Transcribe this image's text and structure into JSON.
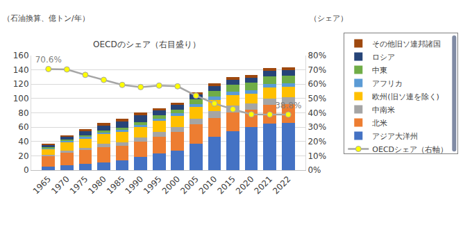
{
  "chart_data": {
    "type": "bar",
    "stacked": true,
    "grid": true,
    "legend": "right",
    "ylabel": "（石油換算、億トン/年）",
    "y2label": "（シェア）",
    "annotation": "OECDのシェア（右目盛り）",
    "categories": [
      "1965",
      "1970",
      "1975",
      "1980",
      "1985",
      "1990",
      "1995",
      "2000",
      "2005",
      "2010",
      "2015",
      "2020",
      "2021",
      "2022"
    ],
    "ylim": [
      0,
      160
    ],
    "yticks": [
      0,
      20,
      40,
      60,
      80,
      100,
      120,
      140,
      160
    ],
    "y2lim": [
      0,
      80
    ],
    "y2ticks": [
      {
        "value": 0,
        "label": "0%"
      },
      {
        "value": 10,
        "label": "10%"
      },
      {
        "value": 20,
        "label": "20%"
      },
      {
        "value": 30,
        "label": "30%"
      },
      {
        "value": 40,
        "label": "40%"
      },
      {
        "value": 50,
        "label": "50%"
      },
      {
        "value": 60,
        "label": "60%"
      },
      {
        "value": 70,
        "label": "70%"
      },
      {
        "value": 80,
        "label": "80%"
      }
    ],
    "series": [
      {
        "name": "アジア大洋州",
        "color": "#4472c4",
        "values": [
          5,
          7,
          9,
          11,
          14,
          18,
          23,
          27,
          37,
          47,
          54,
          60,
          65,
          66
        ]
      },
      {
        "name": "北米",
        "color": "#ed7d31",
        "values": [
          14,
          17.5,
          19,
          21,
          20,
          22,
          24,
          26,
          27,
          26,
          26.5,
          24.5,
          26,
          26
        ]
      },
      {
        "name": "中南米",
        "color": "#a5a5a5",
        "values": [
          2,
          3,
          3.5,
          4.5,
          5,
          5.5,
          6.5,
          7.5,
          8,
          9,
          9.5,
          8.5,
          9,
          9.5
        ]
      },
      {
        "name": "欧州(旧ソ連を除く)",
        "color": "#ffc000",
        "values": [
          9,
          12,
          13,
          14,
          14.5,
          15,
          15,
          15.5,
          16,
          16,
          15,
          14,
          15,
          14.5
        ]
      },
      {
        "name": "アフリカ",
        "color": "#5b9bd5",
        "values": [
          1,
          1.3,
          1.6,
          2,
          2.5,
          2.8,
          3,
          3.3,
          3.8,
          4.5,
          4.8,
          4.9,
          5,
          5.1
        ]
      },
      {
        "name": "中東",
        "color": "#70ad47",
        "values": [
          1,
          1.5,
          2,
          2.5,
          3.5,
          4,
          5,
          5.5,
          7,
          8.5,
          9.5,
          10,
          10.5,
          10.5
        ]
      },
      {
        "name": "ロシア",
        "color": "#264478",
        "values": [
          3.5,
          4.5,
          6.5,
          7.5,
          8.5,
          9,
          6.5,
          6.3,
          6.5,
          6.7,
          6.8,
          7.5,
          8,
          8
        ]
      },
      {
        "name": "その他旧ソ連邦諸国",
        "color": "#9e480e",
        "values": [
          1.5,
          2,
          3,
          3.5,
          4,
          4.5,
          3.5,
          3,
          3.3,
          3.5,
          3.5,
          3.6,
          3.7,
          3.7
        ]
      },
      {
        "name": "OECDシェア（右軸）",
        "type": "line",
        "axis": "y2",
        "color": "#a5a5a5",
        "marker": "circle",
        "values": [
          70.6,
          70.3,
          66.5,
          63,
          59.5,
          58,
          59,
          58.5,
          52,
          46.5,
          42.5,
          38.9,
          38.8,
          38.8
        ],
        "value_labels": [
          "70.6%",
          null,
          null,
          null,
          null,
          null,
          null,
          null,
          null,
          null,
          null,
          null,
          null,
          "38.8%"
        ]
      }
    ]
  }
}
